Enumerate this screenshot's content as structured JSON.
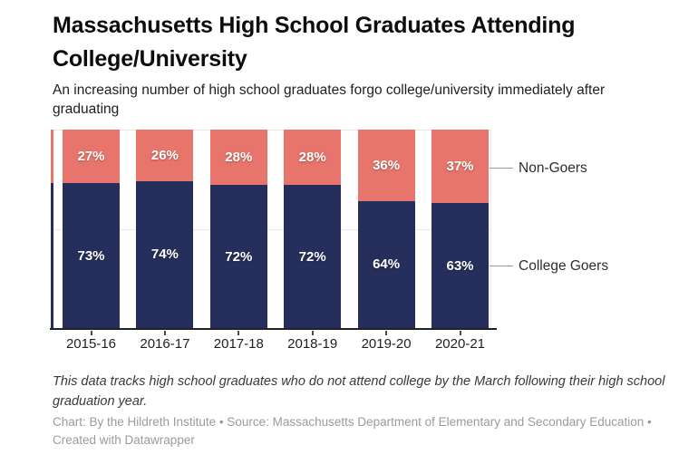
{
  "chart_data": {
    "type": "bar",
    "stacked": true,
    "title": "Massachusetts High School Graduates Attending College/University",
    "subtitle": "An increasing number of high school graduates forgo college/university immediately after graduating",
    "categories": [
      "2015-16",
      "2016-17",
      "2017-18",
      "2018-19",
      "2019-20",
      "2020-21"
    ],
    "series": [
      {
        "name": "Non-Goers",
        "color": "#e7756b",
        "values": [
          27,
          26,
          28,
          28,
          36,
          37
        ]
      },
      {
        "name": "College Goers",
        "color": "#262f5b",
        "values": [
          73,
          74,
          72,
          72,
          64,
          63
        ]
      }
    ],
    "value_format": "percent",
    "ylim": [
      0,
      100
    ],
    "gridlines": [
      50,
      100
    ],
    "grid_on": true,
    "legend_position": "right-of-last-bar"
  },
  "legend": {
    "non_goers": "Non-Goers",
    "college_goers": "College Goers"
  },
  "footer": {
    "note": "This data tracks high school graduates who do not attend college by the March following their high school graduation year.",
    "credit": "Chart: By the Hildreth Institute • Source: Massachusetts Department of Elementary and Secondary Education • Created with Datawrapper"
  }
}
